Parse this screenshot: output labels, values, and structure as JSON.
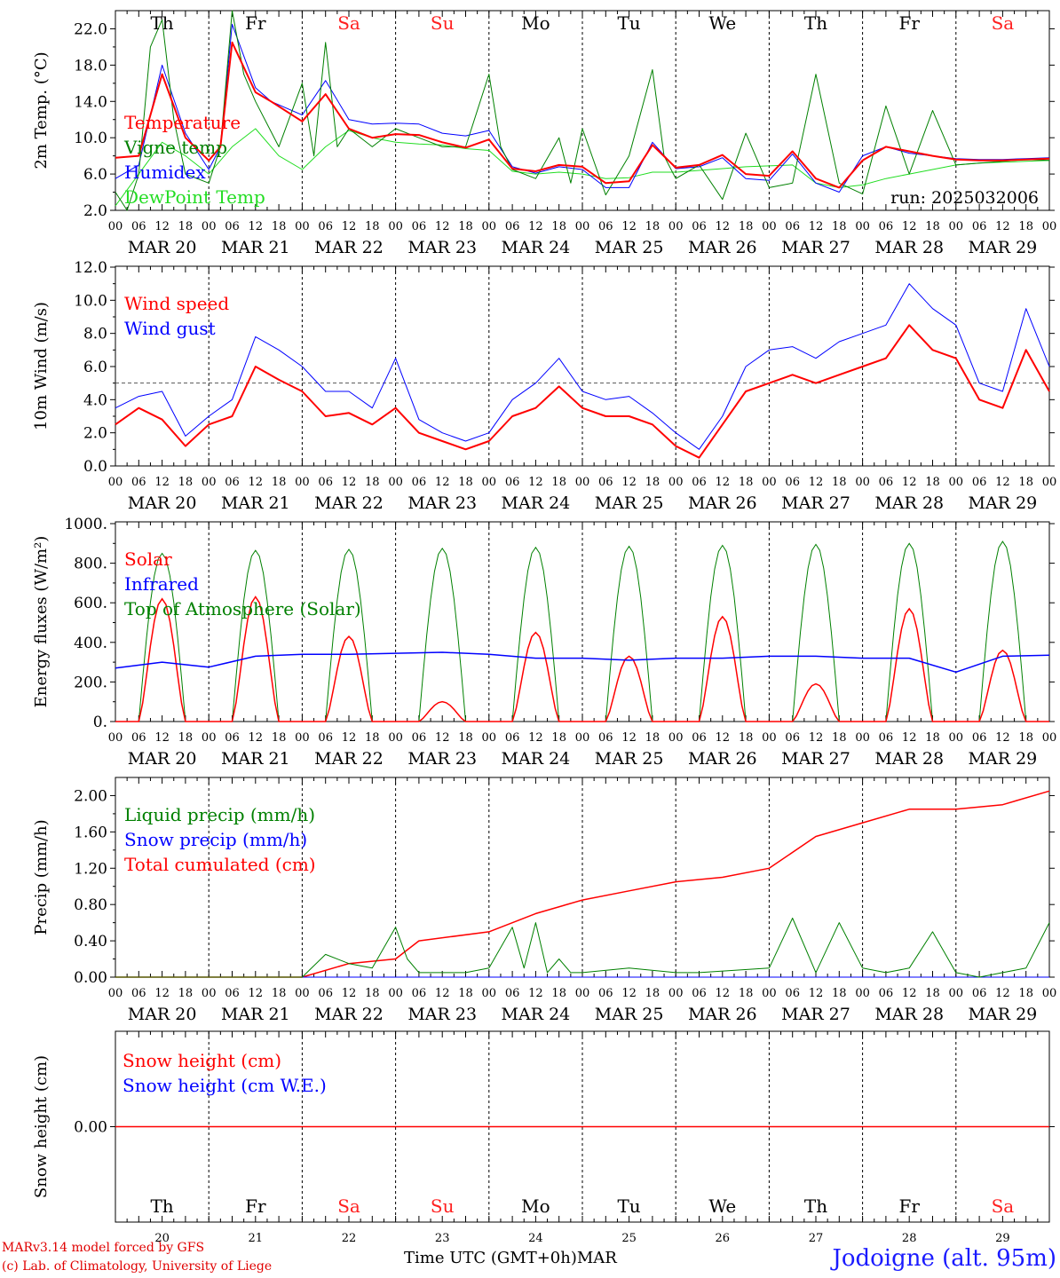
{
  "run_label": "run: 2025032006",
  "footer": {
    "credit_line1": "MARv3.14 model forced by GFS",
    "credit_line2": "(c) Lab. of Climatology, University of Liege",
    "axis_title": "Time UTC (GMT+0h)",
    "month": "MAR",
    "station": "Jodoigne (alt. 95m)"
  },
  "weekdays": [
    "Th",
    "Fr",
    "Sa",
    "Su",
    "Mo",
    "Tu",
    "We",
    "Th",
    "Fr",
    "Sa"
  ],
  "weekend_color": "#ff2020",
  "date_labels": [
    "MAR 20",
    "MAR 21",
    "MAR 22",
    "MAR 23",
    "MAR 24",
    "MAR 25",
    "MAR 26",
    "MAR 27",
    "MAR 28",
    "MAR 29"
  ],
  "day_numbers": [
    "20",
    "21",
    "22",
    "23",
    "24",
    "25",
    "26",
    "27",
    "28",
    "29"
  ],
  "hour_ticks": [
    "00",
    "06",
    "12",
    "18"
  ],
  "final_tick": "00",
  "chart_data": [
    {
      "type": "line",
      "panel": "temperature",
      "ylabel": "2m Temp. (°C)",
      "ylim": [
        2.0,
        24.0
      ],
      "yticks": [
        2.0,
        6.0,
        10.0,
        14.0,
        18.0,
        22.0
      ],
      "ytick_labels": [
        "2.0",
        "6.0",
        "10.0",
        "14.0",
        "18.0",
        "22.0"
      ],
      "x_unit": "hours since 20 MAR 00 UTC",
      "series": [
        {
          "name": "Temperature",
          "color": "#ff0000",
          "width": 2,
          "x": [
            0,
            6,
            12,
            18,
            24,
            27,
            30,
            36,
            40,
            48,
            54,
            60,
            66,
            72,
            78,
            84,
            90,
            96,
            102,
            108,
            114,
            120,
            126,
            132,
            138,
            144,
            150,
            156,
            162,
            168,
            174,
            180,
            186,
            192,
            198,
            204,
            210,
            216,
            222,
            228,
            234,
            240
          ],
          "values": [
            7.8,
            8,
            17,
            10,
            7.5,
            9,
            20.5,
            15,
            14,
            11.8,
            14.8,
            11,
            10,
            10.4,
            10.3,
            9.5,
            8.9,
            9.8,
            6.6,
            6.3,
            7,
            6.8,
            5,
            5.2,
            9.2,
            6.7,
            7,
            8.1,
            6,
            5.8,
            8.5,
            5.5,
            4.5,
            7.5,
            9.0,
            8.5,
            8.0,
            7.6,
            7.5,
            7.5,
            7.6,
            7.7
          ]
        },
        {
          "name": "Vigne temp",
          "color": "#008000",
          "width": 1,
          "x": [
            0,
            3,
            6,
            9,
            12,
            15,
            18,
            24,
            27,
            30,
            33,
            36,
            42,
            48,
            51,
            54,
            57,
            60,
            66,
            72,
            78,
            84,
            90,
            96,
            99,
            102,
            108,
            114,
            117,
            120,
            126,
            132,
            138,
            141,
            144,
            150,
            156,
            162,
            168,
            174,
            180,
            186,
            192,
            198,
            204,
            210,
            216,
            222,
            228,
            234,
            240
          ],
          "values": [
            4,
            2,
            6,
            20,
            23,
            12,
            6,
            5,
            9,
            24,
            17,
            14,
            9,
            16,
            8,
            20.5,
            9,
            11,
            9,
            11,
            10,
            9,
            9,
            17,
            9,
            6.5,
            5.5,
            10,
            5,
            11,
            3.7,
            8,
            17.5,
            8,
            5.5,
            7,
            3.2,
            10.5,
            4.5,
            5,
            17,
            5,
            3.8,
            13.5,
            6,
            13,
            7,
            7.2,
            7.4,
            7.6,
            7.5
          ]
        },
        {
          "name": "Humidex",
          "color": "#0000ff",
          "width": 1,
          "x": [
            0,
            6,
            12,
            18,
            24,
            27,
            30,
            36,
            40,
            48,
            54,
            60,
            66,
            72,
            78,
            84,
            90,
            96,
            102,
            108,
            114,
            120,
            126,
            132,
            138,
            144,
            150,
            156,
            162,
            168,
            174,
            180,
            186,
            192,
            198,
            204,
            210,
            216,
            222,
            228,
            234,
            240
          ],
          "values": [
            5.5,
            7,
            18,
            10.5,
            6.5,
            9,
            22.5,
            15.5,
            14,
            12.5,
            16.3,
            12,
            11.5,
            11.6,
            11.5,
            10.5,
            10.2,
            10.8,
            6.8,
            6.1,
            6.8,
            6.5,
            4.5,
            4.5,
            9.5,
            6.6,
            6.8,
            7.8,
            5.5,
            5.3,
            8.2,
            5.0,
            4.0,
            8.0,
            9.0,
            8.3,
            8.0,
            7.7,
            7.6,
            7.6,
            7.7,
            7.8
          ]
        },
        {
          "name": "DewPoint Temp",
          "color": "#22dd22",
          "width": 1,
          "x": [
            0,
            6,
            12,
            18,
            24,
            30,
            36,
            42,
            48,
            54,
            60,
            66,
            72,
            78,
            84,
            90,
            96,
            102,
            108,
            114,
            120,
            126,
            132,
            138,
            144,
            150,
            156,
            162,
            168,
            174,
            180,
            186,
            192,
            198,
            204,
            210,
            216,
            222,
            228,
            234,
            240
          ],
          "values": [
            2.5,
            6,
            9.5,
            8,
            6,
            9,
            11,
            8,
            6.5,
            9,
            10.8,
            10,
            9.5,
            9.3,
            9.2,
            8.8,
            8.6,
            6.3,
            6.0,
            6.2,
            6.0,
            5.5,
            5.6,
            6.2,
            6.2,
            6.4,
            6.6,
            6.8,
            6.9,
            7.0,
            5.0,
            4.5,
            4.8,
            5.5,
            6.0,
            6.5,
            7.0,
            7.2,
            7.3,
            7.4,
            7.5
          ]
        }
      ]
    },
    {
      "type": "line",
      "panel": "wind",
      "ylabel": "10m Wind (m/s)",
      "ylim": [
        0.0,
        12.0
      ],
      "yticks": [
        0.0,
        2.0,
        4.0,
        6.0,
        8.0,
        10.0,
        12.0
      ],
      "ytick_labels": [
        "0.0",
        "2.0",
        "4.0",
        "6.0",
        "8.0",
        "10.0",
        "12.0"
      ],
      "reference_line": 5.0,
      "series": [
        {
          "name": "Wind speed",
          "color": "#ff0000",
          "width": 2,
          "x": [
            0,
            6,
            12,
            18,
            24,
            30,
            36,
            42,
            48,
            54,
            60,
            66,
            72,
            78,
            84,
            90,
            96,
            102,
            108,
            114,
            120,
            126,
            132,
            138,
            144,
            150,
            156,
            162,
            168,
            174,
            180,
            186,
            192,
            198,
            204,
            210,
            216,
            222,
            228,
            234,
            240
          ],
          "values": [
            2.5,
            3.5,
            2.8,
            1.2,
            2.5,
            3.0,
            6.0,
            5.2,
            4.5,
            3.0,
            3.2,
            2.5,
            3.5,
            2.0,
            1.5,
            1.0,
            1.5,
            3.0,
            3.5,
            4.8,
            3.5,
            3.0,
            3.0,
            2.5,
            1.2,
            0.5,
            2.5,
            4.5,
            5.0,
            5.5,
            5.0,
            5.5,
            6.0,
            6.5,
            8.5,
            7.0,
            6.5,
            4.0,
            3.5,
            7.0,
            4.5
          ]
        },
        {
          "name": "Wind gust",
          "color": "#0000ff",
          "width": 1,
          "x": [
            0,
            6,
            12,
            18,
            24,
            30,
            36,
            42,
            48,
            54,
            60,
            66,
            72,
            78,
            84,
            90,
            96,
            102,
            108,
            114,
            120,
            126,
            132,
            138,
            144,
            150,
            156,
            162,
            168,
            174,
            180,
            186,
            192,
            198,
            204,
            210,
            216,
            222,
            228,
            234,
            240
          ],
          "values": [
            3.5,
            4.2,
            4.5,
            1.8,
            3.0,
            4.0,
            7.8,
            7.0,
            6.0,
            4.5,
            4.5,
            3.5,
            6.5,
            2.8,
            2.0,
            1.5,
            2.0,
            4.0,
            5.0,
            6.5,
            4.5,
            4.0,
            4.2,
            3.2,
            2.0,
            1.0,
            3.0,
            6.0,
            7.0,
            7.2,
            6.5,
            7.5,
            8.0,
            8.5,
            11.0,
            9.5,
            8.5,
            5.0,
            4.5,
            9.5,
            6.0
          ]
        }
      ]
    },
    {
      "type": "line",
      "panel": "energy",
      "ylabel": "Energy fluxes (W/m²)",
      "ylim": [
        0,
        1000
      ],
      "yticks": [
        0,
        200,
        400,
        600,
        800,
        1000
      ],
      "ytick_labels": [
        "0.",
        "200.",
        "400.",
        "600.",
        "800.",
        "1000."
      ],
      "toa_peak_values": [
        850,
        865,
        870,
        875,
        880,
        885,
        890,
        895,
        900,
        910
      ],
      "solar_peak_values": [
        620,
        630,
        430,
        100,
        450,
        330,
        530,
        190,
        570,
        360
      ],
      "series": [
        {
          "name": "Solar",
          "color": "#ff0000",
          "width": 1.5
        },
        {
          "name": "Infrared",
          "color": "#0000ff",
          "width": 1.5,
          "x": [
            0,
            12,
            24,
            36,
            48,
            60,
            72,
            84,
            96,
            108,
            120,
            132,
            144,
            156,
            168,
            180,
            192,
            204,
            216,
            228,
            240
          ],
          "values": [
            270,
            300,
            275,
            330,
            340,
            340,
            345,
            350,
            340,
            320,
            320,
            310,
            320,
            320,
            330,
            330,
            320,
            320,
            250,
            330,
            335
          ]
        },
        {
          "name": "Top of Atmosphere (Solar)",
          "color": "#008000",
          "width": 1
        }
      ]
    },
    {
      "type": "line",
      "panel": "precip",
      "ylabel": "Precip (mm/h)",
      "ylim": [
        0.0,
        2.2
      ],
      "yticks": [
        0.0,
        0.4,
        0.8,
        1.2,
        1.6,
        2.0
      ],
      "ytick_labels": [
        "0.00",
        "0.40",
        "0.80",
        "1.20",
        "1.60",
        "2.00"
      ],
      "series": [
        {
          "name": "Liquid precip (mm/h)",
          "color": "#008000",
          "width": 1,
          "x": [
            0,
            48,
            54,
            60,
            66,
            72,
            75,
            78,
            84,
            90,
            96,
            102,
            105,
            108,
            111,
            114,
            117,
            120,
            132,
            144,
            150,
            168,
            174,
            180,
            186,
            192,
            198,
            204,
            210,
            216,
            222,
            228,
            234,
            240
          ],
          "values": [
            0,
            0,
            0.25,
            0.15,
            0.1,
            0.55,
            0.2,
            0.05,
            0.05,
            0.05,
            0.1,
            0.55,
            0.1,
            0.6,
            0.05,
            0.2,
            0.05,
            0.05,
            0.1,
            0.05,
            0.05,
            0.1,
            0.65,
            0.05,
            0.6,
            0.1,
            0.05,
            0.1,
            0.5,
            0.05,
            0,
            0.05,
            0.1,
            0.6
          ]
        },
        {
          "name": "Snow precip (mm/h)",
          "color": "#0000ff",
          "width": 1,
          "x": [
            0,
            240
          ],
          "values": [
            0,
            0
          ]
        },
        {
          "name": "Total cumulated (cm)",
          "color": "#ff0000",
          "width": 1.5,
          "x": [
            0,
            48,
            60,
            72,
            78,
            96,
            108,
            120,
            132,
            144,
            156,
            168,
            180,
            192,
            204,
            216,
            228,
            240
          ],
          "values": [
            0,
            0,
            0.15,
            0.2,
            0.4,
            0.5,
            0.7,
            0.85,
            0.95,
            1.05,
            1.1,
            1.2,
            1.55,
            1.7,
            1.85,
            1.85,
            1.9,
            2.05
          ]
        }
      ]
    },
    {
      "type": "line",
      "panel": "snow",
      "ylabel": "Snow height (cm)",
      "yticks": [
        0.0
      ],
      "ytick_labels": [
        "0.00"
      ],
      "series": [
        {
          "name": "Snow height (cm)",
          "color": "#ff0000",
          "width": 1.5,
          "x": [
            0,
            240
          ],
          "values": [
            0,
            0
          ]
        },
        {
          "name": "Snow height (cm W.E.)",
          "color": "#0000ff",
          "width": 1,
          "x": [
            0,
            240
          ],
          "values": [
            0,
            0
          ]
        }
      ]
    }
  ]
}
